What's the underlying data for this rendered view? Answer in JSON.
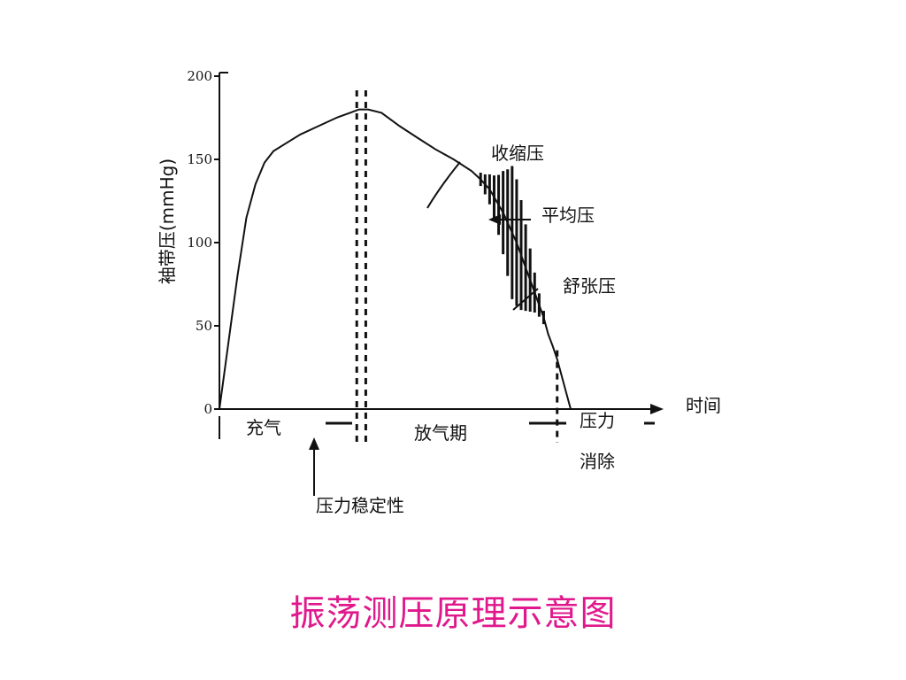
{
  "caption": "振荡测压原理示意图",
  "colors": {
    "caption": "#e0188c",
    "ink": "#111111"
  },
  "chart_data": {
    "type": "line",
    "title": "",
    "ylabel": "袖带压(mmHg)",
    "xlabel": "时间",
    "ylim": [
      0,
      200
    ],
    "yticks": [
      0,
      50,
      100,
      150,
      200
    ],
    "curve": {
      "t": [
        0,
        2,
        4,
        6,
        8,
        10,
        12,
        15,
        18,
        22,
        26,
        29,
        31,
        33,
        36,
        40,
        44,
        48,
        52,
        56,
        58,
        60,
        63,
        66,
        68,
        70,
        72,
        73,
        74,
        75,
        76,
        77,
        78
      ],
      "p": [
        0,
        40,
        80,
        115,
        135,
        148,
        155,
        160,
        165,
        170,
        175,
        178,
        180,
        180,
        178,
        170,
        163,
        156,
        150,
        143,
        138,
        132,
        118,
        100,
        85,
        70,
        55,
        45,
        38,
        30,
        20,
        10,
        0
      ]
    },
    "oscillation": {
      "t": [
        58,
        59,
        60,
        61,
        62,
        63,
        64,
        65,
        66,
        67,
        68,
        69,
        70,
        71,
        72
      ],
      "amp": [
        4,
        6,
        9,
        13,
        18,
        25,
        32,
        40,
        38,
        33,
        26,
        19,
        12,
        7,
        4
      ]
    },
    "markers": {
      "inflation_stop": 30.5,
      "stabilized": 32.5,
      "deflation_end": 75
    },
    "annotations": {
      "systolic": "收缩压",
      "mean": "平均压",
      "diastolic": "舒张压",
      "stability": "压力稳定性",
      "release_line1": "压力",
      "release_line2": "消除"
    },
    "phases": {
      "inflate": "充气",
      "deflate": "放气期"
    }
  }
}
